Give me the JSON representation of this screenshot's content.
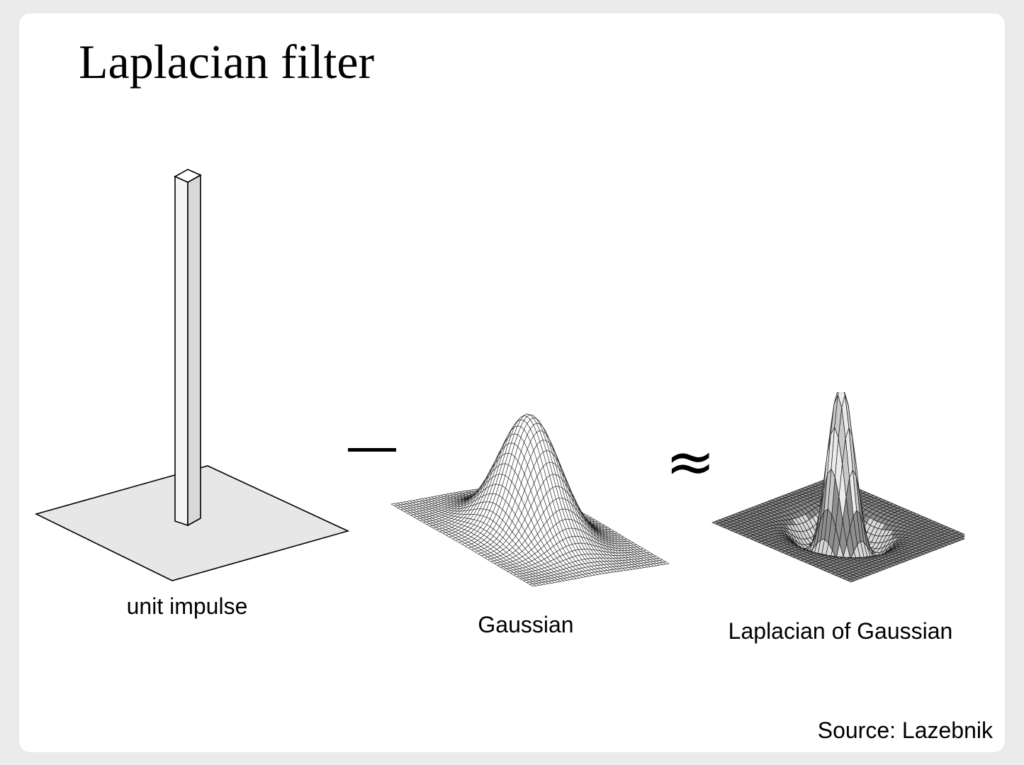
{
  "slide": {
    "title": "Laplacian filter",
    "source": "Source: Lazebnik"
  },
  "panels": [
    {
      "caption": "unit impulse",
      "surface": "unit-impulse"
    },
    {
      "caption": "Gaussian",
      "surface": "gaussian"
    },
    {
      "caption": "Laplacian of Gaussian",
      "surface": "laplacian-of-gaussian"
    }
  ],
  "operators": [
    {
      "symbol": "minus"
    },
    {
      "symbol": "≈"
    }
  ]
}
